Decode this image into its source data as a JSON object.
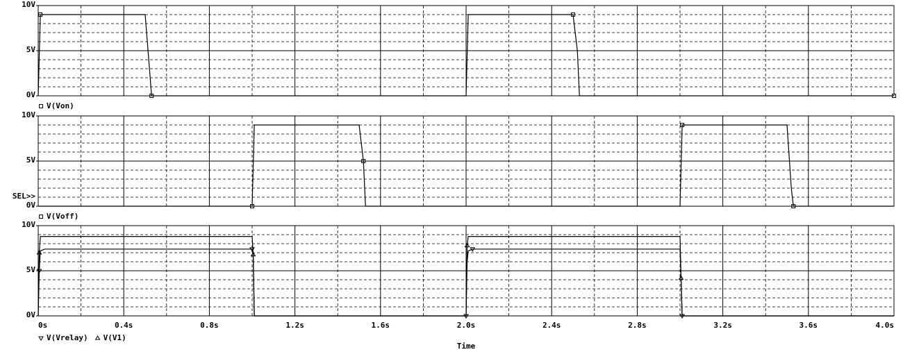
{
  "chart_data": [
    {
      "type": "line",
      "xlim": [
        0,
        4.0
      ],
      "ylim": [
        0,
        10
      ],
      "yticks": [
        {
          "value": 0,
          "label": "0V"
        },
        {
          "value": 5,
          "label": "5V"
        },
        {
          "value": 10,
          "label": "10V"
        }
      ],
      "series": [
        {
          "name": "V(Von)",
          "color": "#000000",
          "marker": "square",
          "x": [
            0,
            0.01,
            0.5,
            0.52,
            0.53,
            2.0,
            2.01,
            2.5,
            2.52,
            2.53,
            4.0
          ],
          "values": [
            0,
            9,
            9,
            3,
            0,
            0,
            9,
            9,
            5,
            0,
            0
          ]
        }
      ]
    },
    {
      "type": "line",
      "xlim": [
        0,
        4.0
      ],
      "ylim": [
        0,
        10
      ],
      "annotation": "SEL>>",
      "yticks": [
        {
          "value": 0,
          "label": "0V"
        },
        {
          "value": 5,
          "label": "5V"
        },
        {
          "value": 10,
          "label": "10V"
        }
      ],
      "series": [
        {
          "name": "V(Voff)",
          "color": "#000000",
          "marker": "square",
          "x": [
            0,
            1.0,
            1.01,
            1.5,
            1.52,
            1.53,
            3.0,
            3.01,
            3.5,
            3.52,
            3.53,
            4.0
          ],
          "values": [
            0,
            0,
            9,
            9,
            5,
            0,
            0,
            9,
            9,
            2,
            0,
            0
          ]
        }
      ]
    },
    {
      "type": "line",
      "xlim": [
        0,
        4.0
      ],
      "ylim": [
        0,
        10
      ],
      "x_label": "Time",
      "yticks": [
        {
          "value": 0,
          "label": "0V"
        },
        {
          "value": 5,
          "label": "5V"
        },
        {
          "value": 10,
          "label": "10V"
        }
      ],
      "xticks": [
        {
          "value": 0,
          "label": "0s"
        },
        {
          "value": 0.4,
          "label": "0.4s"
        },
        {
          "value": 0.8,
          "label": "0.8s"
        },
        {
          "value": 1.2,
          "label": "1.2s"
        },
        {
          "value": 1.6,
          "label": "1.6s"
        },
        {
          "value": 2.0,
          "label": "2.0s"
        },
        {
          "value": 2.4,
          "label": "2.4s"
        },
        {
          "value": 2.8,
          "label": "2.8s"
        },
        {
          "value": 3.2,
          "label": "3.2s"
        },
        {
          "value": 3.6,
          "label": "3.6s"
        },
        {
          "value": 4.0,
          "label": "4.0s"
        }
      ],
      "series": [
        {
          "name": "V(Vrelay)",
          "color": "#000000",
          "marker": "triangle-down",
          "x": [
            0,
            0.005,
            0.01,
            0.03,
            1.0,
            1.005,
            1.01,
            2.0,
            2.005,
            2.01,
            2.03,
            3.0,
            3.005,
            3.01,
            4.0
          ],
          "values": [
            0,
            5,
            7.2,
            7.4,
            7.4,
            7,
            0,
            0,
            6,
            7.2,
            7.4,
            7.4,
            4,
            0,
            0
          ]
        },
        {
          "name": "V(V1)",
          "color": "#000000",
          "marker": "triangle-up",
          "x": [
            0,
            0.005,
            0.01,
            1.0,
            1.005,
            1.01,
            2.0,
            2.005,
            2.01,
            3.0,
            3.005,
            3.01,
            4.0
          ],
          "values": [
            0,
            7,
            8.8,
            8.8,
            6.8,
            0,
            0,
            7.8,
            8.8,
            8.8,
            4.2,
            0,
            0
          ]
        }
      ]
    }
  ]
}
